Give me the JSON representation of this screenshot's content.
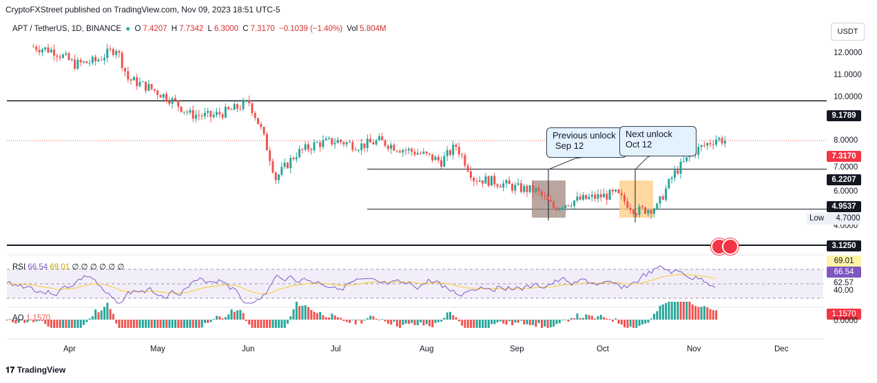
{
  "publisher_line": "CryptoFXStreet published on TradingView.com, Nov 09, 2023 18:51 UTC-5",
  "legend": {
    "symbol": "APT / TetherUS, 1D, BINANCE",
    "open_label": "O",
    "open": "7.4207",
    "high_label": "H",
    "high": "7.7342",
    "low_label": "L",
    "low": "6.3000",
    "close_label": "C",
    "close": "7.3170",
    "change": "−0.1039 (−1.40%)",
    "vol_label": "Vol",
    "vol": "5.804M"
  },
  "currency": "USDT",
  "price_ticks": [
    "12.0000",
    "11.0000",
    "10.0000",
    "8.0000",
    "7.0000",
    "6.0000",
    "4.0000"
  ],
  "price_tags": {
    "level_9": "9.1789",
    "current": "7.3170",
    "level_6": "6.2207",
    "level_5": "4.9537",
    "low_label": "Low",
    "low_value": "4.7000",
    "level_3": "3.1250"
  },
  "callouts": {
    "prev": {
      "line1": "Previous unlock",
      "line2": "Sep 12"
    },
    "next": {
      "line1": "Next unlock",
      "line2": "Oct 12"
    }
  },
  "rsi": {
    "label": "RSI",
    "value": "66.54",
    "ma": "69.01",
    "extras": "∅ ∅ ∅ ∅ ∅ ∅",
    "tag_ma": "69.01",
    "tag_value": "66.54",
    "tick_mid": "62.57",
    "tick_low": "40.00"
  },
  "ao": {
    "label": "AO",
    "value": "1.1570",
    "tag": "1.1570",
    "tick": "0.0000"
  },
  "months": [
    "Apr",
    "May",
    "Jun",
    "Jul",
    "Aug",
    "Sep",
    "Oct",
    "Nov",
    "Dec"
  ],
  "brand": "TradingView",
  "colors": {
    "up": "#26a69a",
    "down": "#ef5350",
    "rsi": "#7e57c2",
    "rsi_ma": "#f7d04a",
    "ao_up": "#26a69a",
    "ao_down": "#ef5350"
  },
  "chart_data": {
    "type": "candlestick",
    "title": "APT / TetherUS, 1D, BINANCE",
    "x_labels": [
      "Apr",
      "May",
      "Jun",
      "Jul",
      "Aug",
      "Sep",
      "Oct",
      "Nov",
      "Dec"
    ],
    "close_path": [
      [
        "Mar 20",
        12.5
      ],
      [
        "Mar 27",
        12.2
      ],
      [
        "Apr 3",
        11.3
      ],
      [
        "Apr 10",
        11.5
      ],
      [
        "Apr 17",
        12.4
      ],
      [
        "Apr 21",
        10.4
      ],
      [
        "Apr 28",
        9.9
      ],
      [
        "May 5",
        9.3
      ],
      [
        "May 12",
        8.5
      ],
      [
        "May 19",
        8.4
      ],
      [
        "May 26",
        8.7
      ],
      [
        "Jun 1",
        9.1
      ],
      [
        "Jun 5",
        7.8
      ],
      [
        "Jun 10",
        5.9
      ],
      [
        "Jun 17",
        6.8
      ],
      [
        "Jun 24",
        7.2
      ],
      [
        "Jul 1",
        7.3
      ],
      [
        "Jul 8",
        7.1
      ],
      [
        "Jul 15",
        7.3
      ],
      [
        "Jul 22",
        7.0
      ],
      [
        "Jul 29",
        6.8
      ],
      [
        "Aug 5",
        6.5
      ],
      [
        "Aug 10",
        7.1
      ],
      [
        "Aug 16",
        5.9
      ],
      [
        "Aug 23",
        5.8
      ],
      [
        "Aug 30",
        5.6
      ],
      [
        "Sep 6",
        5.5
      ],
      [
        "Sep 12",
        5.0
      ],
      [
        "Sep 19",
        5.2
      ],
      [
        "Sep 26",
        5.3
      ],
      [
        "Oct 3",
        5.4
      ],
      [
        "Oct 10",
        4.9
      ],
      [
        "Oct 17",
        5.0
      ],
      [
        "Oct 23",
        6.1
      ],
      [
        "Oct 30",
        6.9
      ],
      [
        "Nov 6",
        7.4
      ],
      [
        "Nov 9",
        7.317
      ]
    ],
    "horizontal_levels": [
      9.1789,
      6.2207,
      4.9537,
      3.125
    ],
    "ylim": [
      3.0,
      13.0
    ],
    "y_scale": "log"
  }
}
